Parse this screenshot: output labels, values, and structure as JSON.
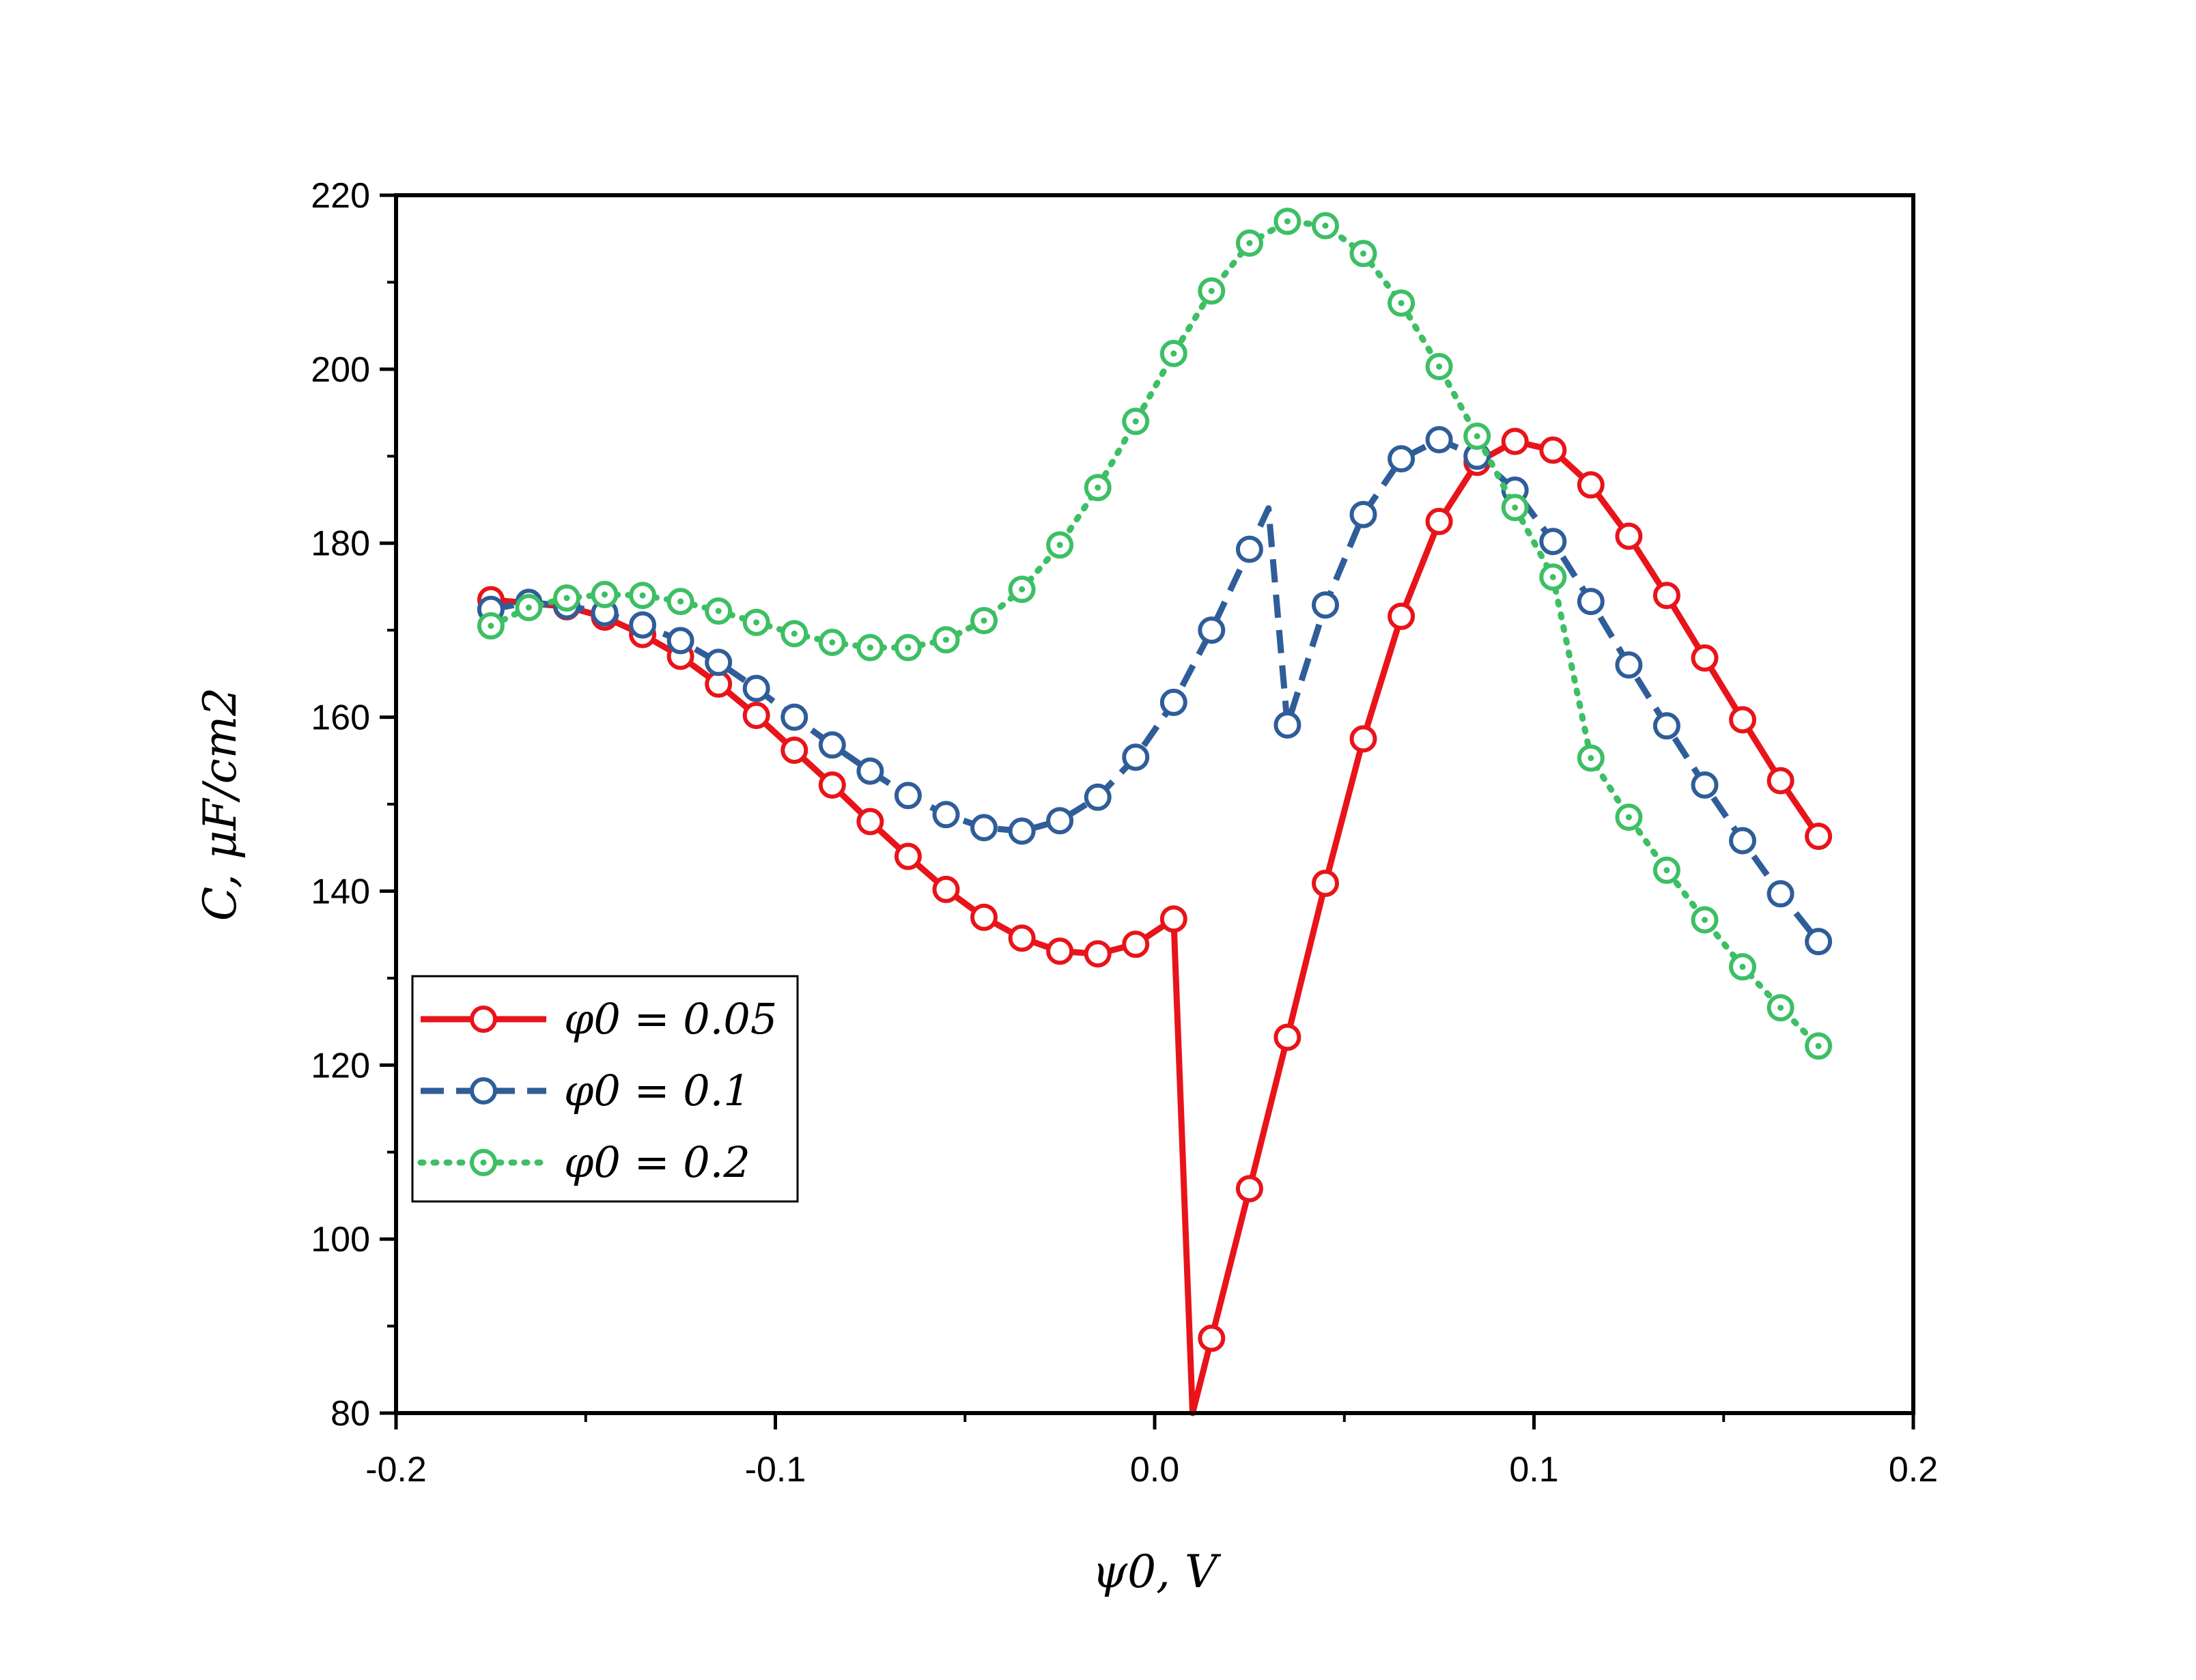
{
  "chart_data": {
    "type": "line",
    "title": "",
    "xlabel": "ψ0, V",
    "ylabel": "C, μF/cm2",
    "xlim": [
      -0.2,
      0.2
    ],
    "ylim": [
      80,
      220
    ],
    "x_ticks": [
      -0.2,
      -0.1,
      0.0,
      0.1,
      0.2
    ],
    "x_tick_labels": [
      "-0.2",
      "-0.1",
      "0.0",
      "0.1",
      "0.2"
    ],
    "y_ticks": [
      80,
      100,
      120,
      140,
      160,
      180,
      200,
      220
    ],
    "y_tick_labels": [
      "80",
      "100",
      "120",
      "140",
      "160",
      "180",
      "200",
      "220"
    ],
    "grid": false,
    "legend_position": "lower-left",
    "series": [
      {
        "name": "φ0 = 0.05",
        "legend_label": "φ0 = 0.05",
        "color": "#e8141a",
        "style": "solid",
        "x": [
          -0.175,
          -0.165,
          -0.155,
          -0.145,
          -0.135,
          -0.125,
          -0.115,
          -0.105,
          -0.095,
          -0.085,
          -0.075,
          -0.065,
          -0.055,
          -0.045,
          -0.035,
          -0.025,
          -0.015,
          -0.005,
          0.005,
          0.01,
          0.015,
          0.025,
          0.035,
          0.045,
          0.055,
          0.065,
          0.075,
          0.085,
          0.095,
          0.105,
          0.115,
          0.125,
          0.135,
          0.145,
          0.155,
          0.165,
          0.175
        ],
        "y": [
          173.5,
          173.1,
          172.7,
          171.5,
          169.5,
          167.0,
          163.8,
          160.2,
          156.2,
          152.2,
          148.0,
          144.0,
          140.2,
          137.0,
          134.6,
          133.1,
          132.8,
          133.9,
          136.8,
          80.0,
          88.6,
          105.8,
          123.2,
          140.9,
          157.5,
          171.6,
          182.5,
          189.3,
          191.7,
          190.7,
          186.7,
          180.8,
          174.0,
          166.8,
          159.7,
          152.7,
          146.3
        ],
        "markers": [
          true,
          true,
          true,
          true,
          true,
          true,
          true,
          true,
          true,
          true,
          true,
          true,
          true,
          true,
          true,
          true,
          true,
          true,
          true,
          false,
          true,
          true,
          true,
          true,
          true,
          true,
          true,
          true,
          true,
          true,
          true,
          true,
          true,
          true,
          true,
          true,
          true
        ]
      },
      {
        "name": "φ0 = 0.1",
        "legend_label": "φ0 = 0.1",
        "color": "#2f5d99",
        "style": "dashed",
        "x": [
          -0.175,
          -0.165,
          -0.155,
          -0.145,
          -0.135,
          -0.125,
          -0.115,
          -0.105,
          -0.095,
          -0.085,
          -0.075,
          -0.065,
          -0.055,
          -0.045,
          -0.035,
          -0.025,
          -0.015,
          -0.005,
          0.005,
          0.015,
          0.025,
          0.03,
          0.035,
          0.045,
          0.055,
          0.065,
          0.075,
          0.085,
          0.095,
          0.105,
          0.115,
          0.125,
          0.135,
          0.145,
          0.155,
          0.165,
          0.175
        ],
        "y": [
          172.4,
          173.2,
          172.8,
          172.0,
          170.6,
          168.8,
          166.3,
          163.3,
          160.0,
          156.8,
          153.8,
          151.0,
          148.8,
          147.3,
          146.9,
          148.1,
          150.8,
          155.4,
          161.7,
          170.0,
          179.3,
          184.0,
          159.1,
          172.9,
          183.3,
          189.7,
          191.9,
          190.0,
          186.1,
          180.2,
          173.3,
          166.0,
          159.0,
          152.2,
          145.8,
          139.7,
          134.2
        ],
        "markers": [
          true,
          true,
          true,
          true,
          true,
          true,
          true,
          true,
          true,
          true,
          true,
          true,
          true,
          true,
          true,
          true,
          true,
          true,
          true,
          true,
          true,
          false,
          true,
          true,
          true,
          true,
          true,
          true,
          true,
          true,
          true,
          true,
          true,
          true,
          true,
          true,
          true
        ]
      },
      {
        "name": "φ0 = 0.2",
        "legend_label": "φ0 = 0.2",
        "color": "#3dbf64",
        "style": "dotted",
        "x": [
          -0.175,
          -0.165,
          -0.155,
          -0.145,
          -0.135,
          -0.125,
          -0.115,
          -0.105,
          -0.095,
          -0.085,
          -0.075,
          -0.065,
          -0.055,
          -0.045,
          -0.035,
          -0.025,
          -0.015,
          -0.005,
          0.005,
          0.015,
          0.025,
          0.035,
          0.045,
          0.055,
          0.065,
          0.075,
          0.085,
          0.095,
          0.105,
          0.115,
          0.125,
          0.135,
          0.145,
          0.155,
          0.165,
          0.175
        ],
        "y": [
          170.5,
          172.6,
          173.7,
          174.1,
          174.0,
          173.3,
          172.2,
          170.9,
          169.6,
          168.6,
          168.0,
          168.0,
          168.9,
          171.1,
          174.7,
          179.8,
          186.4,
          194.0,
          201.8,
          209.0,
          214.5,
          217.0,
          216.5,
          213.3,
          207.6,
          200.3,
          192.3,
          184.1,
          176.1,
          155.3,
          148.5,
          142.4,
          136.7,
          131.3,
          126.6,
          122.2
        ],
        "markers": [
          true,
          true,
          true,
          true,
          true,
          true,
          true,
          true,
          true,
          true,
          true,
          true,
          true,
          true,
          true,
          true,
          true,
          true,
          true,
          true,
          true,
          true,
          true,
          true,
          true,
          true,
          true,
          true,
          true,
          true,
          true,
          true,
          true,
          true,
          true,
          true
        ]
      }
    ]
  }
}
